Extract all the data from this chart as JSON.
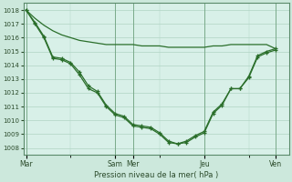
{
  "bg_color": "#cce8dc",
  "plot_bg_color": "#d8f0e8",
  "grid_color": "#b0d4c4",
  "line_color": "#2a6e2a",
  "marker_color": "#2a6e2a",
  "ylabel_vals": [
    1008,
    1009,
    1010,
    1011,
    1012,
    1013,
    1014,
    1015,
    1016,
    1017,
    1018
  ],
  "ylim": [
    1007.5,
    1018.5
  ],
  "xlabel": "Pression niveau de la mer( hPa )",
  "xtick_labels": [
    "Mar",
    "Sam",
    "Mer",
    "Jeu",
    "Ven"
  ],
  "xtick_positions": [
    0,
    10,
    12,
    20,
    28
  ],
  "xlim": [
    -0.3,
    29.5
  ],
  "series1_x": [
    0,
    1,
    2,
    3,
    4,
    5,
    6,
    7,
    8,
    9,
    10,
    11,
    12,
    13,
    14,
    15,
    16,
    17,
    18,
    19,
    20,
    21,
    22,
    23,
    24,
    25,
    26,
    27,
    28
  ],
  "series1_y": [
    1018,
    1017.4,
    1016.9,
    1016.5,
    1016.2,
    1016.0,
    1015.8,
    1015.7,
    1015.6,
    1015.5,
    1015.5,
    1015.5,
    1015.5,
    1015.4,
    1015.4,
    1015.4,
    1015.3,
    1015.3,
    1015.3,
    1015.3,
    1015.3,
    1015.4,
    1015.4,
    1015.5,
    1015.5,
    1015.5,
    1015.5,
    1015.5,
    1015.2
  ],
  "series2_x": [
    0,
    1,
    2,
    3,
    4,
    5,
    6,
    7,
    8,
    9,
    10,
    11,
    12,
    13,
    14,
    15,
    16,
    17,
    18,
    19,
    20,
    21,
    22,
    23,
    24,
    25,
    26,
    27,
    28
  ],
  "series2_y": [
    1018,
    1017.1,
    1016.1,
    1014.6,
    1014.5,
    1014.2,
    1013.5,
    1012.5,
    1012.1,
    1011.1,
    1010.5,
    1010.3,
    1009.7,
    1009.6,
    1009.5,
    1009.1,
    1008.5,
    1008.3,
    1008.4,
    1008.8,
    1009.1,
    1010.5,
    1011.1,
    1012.3,
    1012.3,
    1013.1,
    1014.6,
    1014.9,
    1015.1
  ],
  "series3_x": [
    0,
    1,
    2,
    3,
    4,
    5,
    6,
    7,
    8,
    9,
    10,
    11,
    12,
    13,
    14,
    15,
    16,
    17,
    18,
    19,
    20,
    21,
    22,
    23,
    24,
    25,
    26,
    27,
    28
  ],
  "series3_y": [
    1018,
    1017.0,
    1016.0,
    1014.5,
    1014.4,
    1014.1,
    1013.3,
    1012.3,
    1012.0,
    1011.0,
    1010.4,
    1010.2,
    1009.6,
    1009.5,
    1009.4,
    1009.0,
    1008.4,
    1008.3,
    1008.5,
    1008.9,
    1009.2,
    1010.6,
    1011.2,
    1012.3,
    1012.3,
    1013.2,
    1014.7,
    1015.0,
    1015.2
  ]
}
